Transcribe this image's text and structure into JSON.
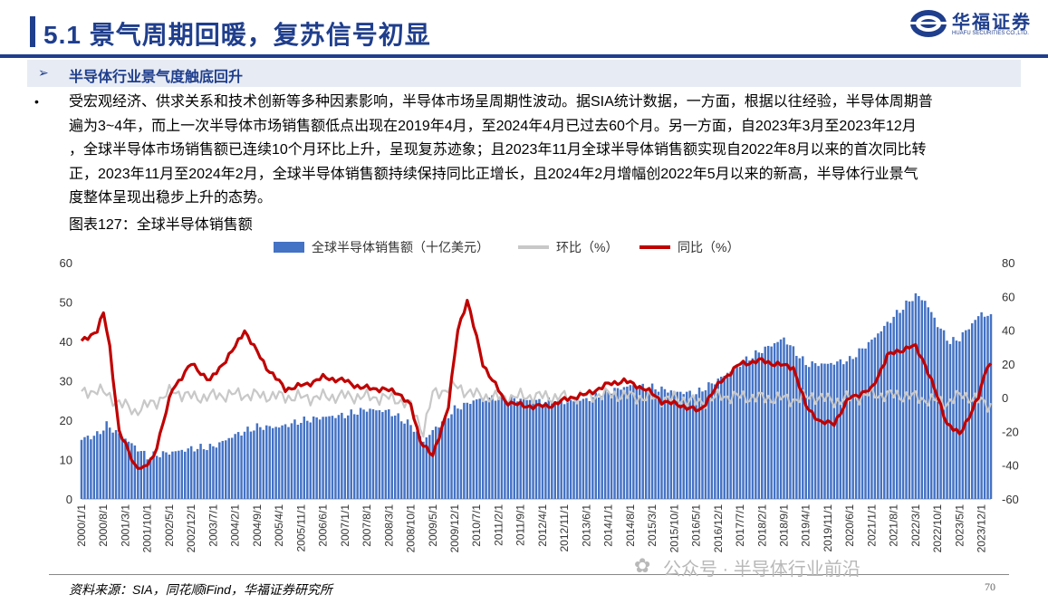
{
  "header": {
    "title": "5.1 景气周期回暖，复苏信号初显",
    "logo_cn": "华福证券",
    "logo_en": "HUAFU SECURITIES CO.,LTD.",
    "brand_color": "#1f3e8c"
  },
  "section": {
    "subtitle": "半导体行业景气度触底回升",
    "bullet": "•",
    "paragraph_lines": [
      "受宏观经济、供求关系和技术创新等多种因素影响，半导体市场呈周期性波动。据SIA统计数据，一方面，根据以往经验，半导体周期普",
      "遍为3~4年，而上一次半导体市场销售额低点出现在2019年4月，至2024年4月已过去60个月。另一方面，自2023年3月至2023年12月",
      "，全球半导体市场销售额已连续10个月环比上升，呈现复苏迹象；且2023年11月全球半导体销售额实现自2022年8月以来的首次同比转",
      "正，2023年11月至2024年2月，全球半导体销售额持续保持同比正增长，且2024年2月增幅创2022年5月以来的新高，半导体行业景气",
      "度整体呈现出稳步上升的态势。"
    ]
  },
  "figure": {
    "title": "图表127：全球半导体销售额",
    "source": "资料来源：SIA，同花顺iFind，华福证券研究所",
    "page_number": "70",
    "watermark": "公众号 · 半导体行业前沿"
  },
  "chart_data": {
    "type": "bar+line",
    "title": "",
    "legend_position": "top",
    "series": [
      {
        "name": "全球半导体销售额（十亿美元）",
        "type": "bar",
        "axis": "left",
        "color": "#4472c4",
        "x": [
          "2000-01",
          "2000-06",
          "2000-09",
          "2001-03",
          "2001-10",
          "2002-05",
          "2002-12",
          "2003-07",
          "2004-02",
          "2004-09",
          "2005-04",
          "2005-11",
          "2006-06",
          "2007-01",
          "2007-08",
          "2008-03",
          "2008-10",
          "2009-02",
          "2009-05",
          "2009-12",
          "2010-07",
          "2011-02",
          "2011-09",
          "2012-04",
          "2012-11",
          "2013-06",
          "2014-01",
          "2014-08",
          "2015-03",
          "2015-10",
          "2016-05",
          "2016-12",
          "2017-07",
          "2018-02",
          "2018-09",
          "2019-04",
          "2019-11",
          "2020-06",
          "2021-01",
          "2021-08",
          "2022-03",
          "2022-06",
          "2022-10",
          "2023-02",
          "2023-05",
          "2023-12",
          "2024-02"
        ],
        "values": [
          15,
          16,
          18.5,
          15,
          10.5,
          11.5,
          12.5,
          13,
          16,
          18,
          18,
          19.5,
          20.5,
          21,
          22.5,
          22,
          18.5,
          14.5,
          17,
          22.5,
          25,
          25.5,
          25,
          24.5,
          24.5,
          25,
          27,
          28.5,
          28,
          27,
          26.5,
          30,
          34,
          37.5,
          40.5,
          34,
          34,
          35,
          40,
          46,
          51.5,
          50,
          44,
          39.5,
          40.5,
          47,
          46
        ]
      },
      {
        "name": "环比（%）",
        "type": "line",
        "axis": "right",
        "color": "#c8c8c8",
        "x": [
          "2000-01",
          "2000-06",
          "2001-01",
          "2001-06",
          "2002-01",
          "2002-06",
          "2003-01",
          "2004-01",
          "2005-01",
          "2006-01",
          "2007-01",
          "2008-01",
          "2008-06",
          "2008-10",
          "2009-02",
          "2009-05",
          "2009-12",
          "2010-06",
          "2011-01",
          "2012-01",
          "2013-01",
          "2014-01",
          "2015-01",
          "2016-01",
          "2016-06",
          "2017-01",
          "2018-01",
          "2019-01",
          "2019-06",
          "2020-01",
          "2021-01",
          "2022-01",
          "2022-06",
          "2023-01",
          "2023-06",
          "2024-02"
        ],
        "values": [
          2,
          5,
          -3,
          -8,
          -2,
          4,
          0,
          2,
          1,
          0,
          1,
          0,
          -1,
          -5,
          -20,
          2,
          7,
          2,
          0,
          1,
          0,
          2,
          0,
          -1,
          -3,
          1,
          0,
          -1,
          1,
          -2,
          2,
          1,
          -1,
          -3,
          2,
          -4
        ]
      },
      {
        "name": "同比（%）",
        "type": "line",
        "axis": "right",
        "color": "#c00000",
        "x": [
          "2000-01",
          "2000-06",
          "2000-08",
          "2000-10",
          "2001-01",
          "2001-06",
          "2001-09",
          "2001-12",
          "2002-06",
          "2002-12",
          "2003-06",
          "2004-02",
          "2004-05",
          "2004-08",
          "2004-12",
          "2005-06",
          "2006-01",
          "2006-06",
          "2007-01",
          "2007-06",
          "2008-01",
          "2008-06",
          "2008-10",
          "2009-01",
          "2009-05",
          "2009-10",
          "2010-01",
          "2010-04",
          "2010-09",
          "2011-04",
          "2011-10",
          "2012-06",
          "2013-01",
          "2013-06",
          "2014-01",
          "2014-06",
          "2015-01",
          "2015-06",
          "2016-01",
          "2016-06",
          "2017-01",
          "2017-07",
          "2018-02",
          "2018-06",
          "2018-12",
          "2019-04",
          "2019-09",
          "2020-01",
          "2020-06",
          "2021-01",
          "2021-06",
          "2022-01",
          "2022-03",
          "2022-06",
          "2022-10",
          "2023-01",
          "2023-05",
          "2023-11",
          "2024-02"
        ],
        "values": [
          33,
          40,
          50,
          30,
          -20,
          -40,
          -42,
          -35,
          5,
          20,
          10,
          30,
          40,
          30,
          18,
          5,
          8,
          12,
          10,
          6,
          5,
          3,
          -5,
          -25,
          -35,
          -5,
          40,
          58,
          20,
          -2,
          -5,
          -5,
          0,
          2,
          8,
          10,
          5,
          -2,
          -5,
          -8,
          10,
          20,
          22,
          20,
          18,
          -5,
          -15,
          -15,
          0,
          5,
          25,
          30,
          30,
          20,
          0,
          -15,
          -22,
          0,
          20
        ]
      }
    ],
    "left_axis": {
      "min": 0,
      "max": 60,
      "ticks": [
        "0",
        "10",
        "20",
        "30",
        "40",
        "50",
        "60"
      ]
    },
    "right_axis": {
      "min": -60,
      "max": 80,
      "ticks": [
        "-60",
        "-40",
        "-20",
        "0",
        "20",
        "40",
        "60",
        "80"
      ]
    },
    "x_ticks": [
      "2000/1/1",
      "2000/8/1",
      "2001/3/1",
      "2001/10/1",
      "2002/5/1",
      "2002/12/1",
      "2003/7/1",
      "2004/2/1",
      "2004/9/1",
      "2005/4/1",
      "2005/11/1",
      "2006/6/1",
      "2007/1/1",
      "2007/8/1",
      "2008/3/1",
      "2008/10/1",
      "2009/5/1",
      "2009/12/1",
      "2010/7/1",
      "2011/2/1",
      "2011/9/1",
      "2012/4/1",
      "2012/11/1",
      "2013/6/1",
      "2014/1/1",
      "2014/8/1",
      "2015/3/1",
      "2015/10/1",
      "2016/5/1",
      "2016/12/1",
      "2017/7/1",
      "2018/2/1",
      "2018/9/1",
      "2019/4/1",
      "2019/11/1",
      "2020/6/1",
      "2021/1/1",
      "2021/8/1",
      "2022/3/1",
      "2022/10/1",
      "2023/5/1",
      "2023/12/1"
    ]
  }
}
